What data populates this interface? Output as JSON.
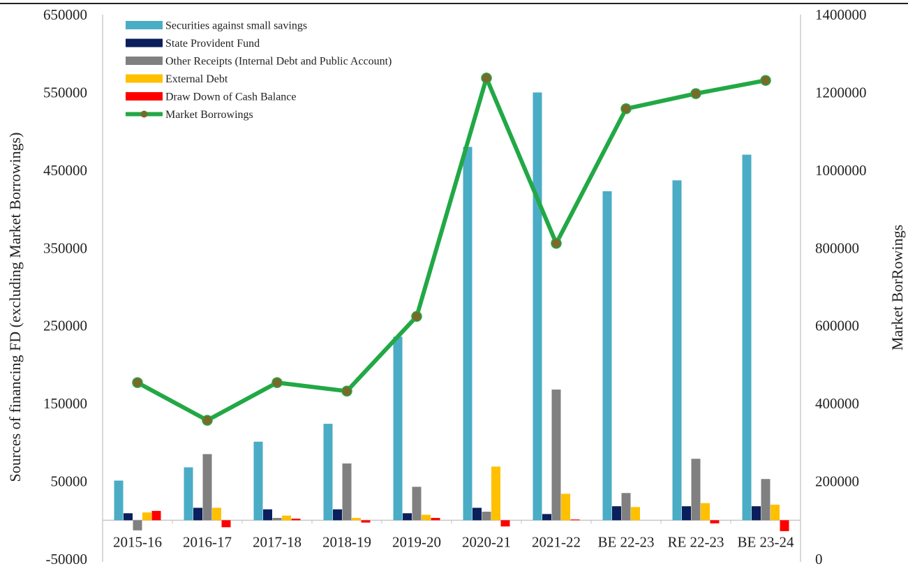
{
  "chart_data": {
    "type": "bar",
    "title": "",
    "categories": [
      "2015-16",
      "2016-17",
      "2017-18",
      "2018-19",
      "2019-20",
      "2020-21",
      "2021-22",
      "BE 22-23",
      "RE 22-23",
      "BE 23-24"
    ],
    "ylabel_left": "Sources of  financing FD (excluding Market Borrowings)",
    "ylabel_right": "Market BorRowings",
    "y_left": {
      "min": -50000,
      "max": 650000,
      "ticks": [
        -50000,
        50000,
        150000,
        250000,
        350000,
        450000,
        550000,
        650000
      ]
    },
    "y_right": {
      "min": 0,
      "max": 1400000,
      "ticks": [
        0,
        200000,
        400000,
        600000,
        800000,
        1000000,
        1200000,
        1400000
      ]
    },
    "legend_position": "top-left",
    "grid": false,
    "series": [
      {
        "name": "Securities against small savings",
        "type": "bar",
        "axis": "left",
        "color": "#4bacc6",
        "values": [
          51000,
          68000,
          101000,
          124000,
          236000,
          480000,
          550000,
          423000,
          437000,
          470000
        ]
      },
      {
        "name": "State Provident Fund",
        "type": "bar",
        "axis": "left",
        "color": "#0b1f5c",
        "values": [
          9000,
          16000,
          14000,
          14000,
          9000,
          16000,
          8000,
          18000,
          18000,
          18000
        ]
      },
      {
        "name": "Other Receipts (Internal Debt and Public Account)",
        "type": "bar",
        "axis": "left",
        "color": "#808080",
        "values": [
          -13000,
          85000,
          3000,
          73000,
          43000,
          11000,
          168000,
          35000,
          79000,
          53000
        ]
      },
      {
        "name": "External Debt",
        "type": "bar",
        "axis": "left",
        "color": "#ffc000",
        "values": [
          10000,
          16000,
          6000,
          3000,
          7000,
          69000,
          34000,
          17000,
          22000,
          20000
        ]
      },
      {
        "name": "Draw Down of Cash Balance",
        "type": "bar",
        "axis": "left",
        "color": "#ff0000",
        "values": [
          12000,
          -9000,
          2000,
          -3000,
          3000,
          -8000,
          1000,
          0,
          -4000,
          -14000
        ]
      },
      {
        "name": "Market Borrowings",
        "type": "line",
        "axis": "right",
        "color": "#22a845",
        "marker_color": "#7a6a2a",
        "values": [
          454000,
          357000,
          454000,
          432000,
          624000,
          1237000,
          812000,
          1158000,
          1197000,
          1231000
        ]
      }
    ]
  }
}
